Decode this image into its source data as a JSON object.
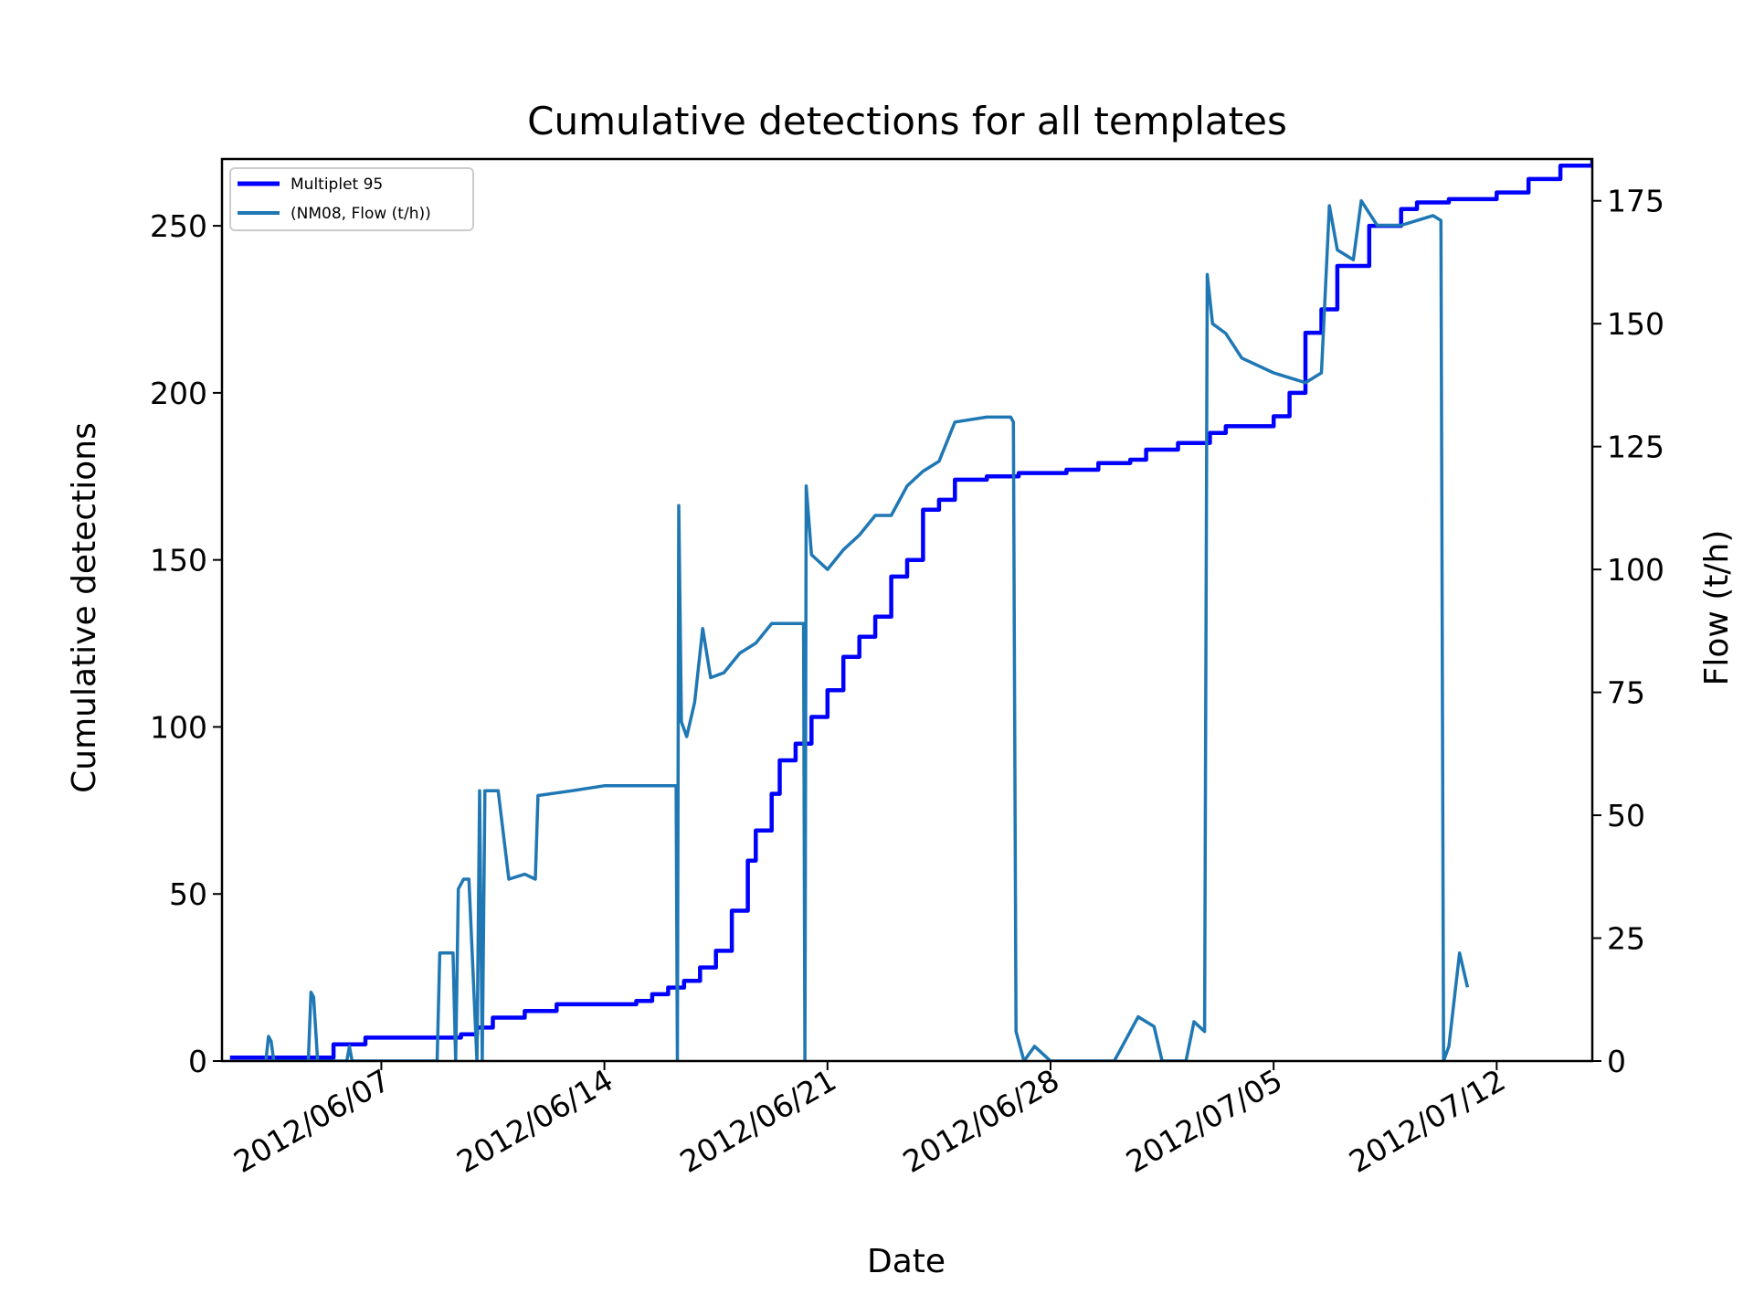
{
  "chart_data": {
    "type": "line",
    "title": "Cumulative detections for all templates",
    "xlabel": "Date",
    "ylabel": "Cumulative detections",
    "y2label": "Flow (t/h)",
    "x_tick_labels": [
      "2012/06/07",
      "2012/06/14",
      "2012/06/21",
      "2012/06/28",
      "2012/07/05",
      "2012/07/12"
    ],
    "x_tick_dates": [
      "2012-06-07",
      "2012-06-14",
      "2012-06-21",
      "2012-06-28",
      "2012-07-05",
      "2012-07-12"
    ],
    "xlim": [
      "2012-06-02T00:00",
      "2012-07-15T00:00"
    ],
    "ylim": [
      0,
      270
    ],
    "y_ticks": [
      0,
      50,
      100,
      150,
      200,
      250
    ],
    "y2lim": [
      0,
      183.5
    ],
    "y2_ticks": [
      0,
      25,
      50,
      75,
      100,
      125,
      150,
      175
    ],
    "legend_position": "upper left",
    "grid": false,
    "series": [
      {
        "name": "Multiplet 95",
        "axis": "left",
        "color": "#0000ff",
        "style": "step",
        "points": [
          [
            "2012-06-02T06:00",
            1
          ],
          [
            "2012-06-03T12:00",
            1
          ],
          [
            "2012-06-04T18:00",
            1
          ],
          [
            "2012-06-05T12:00",
            5
          ],
          [
            "2012-06-06T12:00",
            7
          ],
          [
            "2012-06-07T12:00",
            7
          ],
          [
            "2012-06-08T12:00",
            7
          ],
          [
            "2012-06-09T12:00",
            8
          ],
          [
            "2012-06-10T00:00",
            10
          ],
          [
            "2012-06-10T12:00",
            13
          ],
          [
            "2012-06-11T12:00",
            15
          ],
          [
            "2012-06-12T12:00",
            17
          ],
          [
            "2012-06-13T12:00",
            17
          ],
          [
            "2012-06-14T12:00",
            17
          ],
          [
            "2012-06-15T00:00",
            18
          ],
          [
            "2012-06-15T12:00",
            20
          ],
          [
            "2012-06-16T00:00",
            22
          ],
          [
            "2012-06-16T12:00",
            24
          ],
          [
            "2012-06-17T00:00",
            28
          ],
          [
            "2012-06-17T12:00",
            33
          ],
          [
            "2012-06-18T00:00",
            45
          ],
          [
            "2012-06-18T12:00",
            60
          ],
          [
            "2012-06-18T18:00",
            69
          ],
          [
            "2012-06-19T06:00",
            80
          ],
          [
            "2012-06-19T12:00",
            90
          ],
          [
            "2012-06-20T00:00",
            95
          ],
          [
            "2012-06-20T12:00",
            103
          ],
          [
            "2012-06-21T00:00",
            111
          ],
          [
            "2012-06-21T12:00",
            121
          ],
          [
            "2012-06-22T00:00",
            127
          ],
          [
            "2012-06-22T12:00",
            133
          ],
          [
            "2012-06-23T00:00",
            145
          ],
          [
            "2012-06-23T12:00",
            150
          ],
          [
            "2012-06-24T00:00",
            165
          ],
          [
            "2012-06-24T12:00",
            168
          ],
          [
            "2012-06-25T00:00",
            174
          ],
          [
            "2012-06-26T00:00",
            175
          ],
          [
            "2012-06-27T00:00",
            176
          ],
          [
            "2012-06-28T12:00",
            177
          ],
          [
            "2012-06-29T12:00",
            179
          ],
          [
            "2012-06-30T12:00",
            180
          ],
          [
            "2012-07-01T00:00",
            183
          ],
          [
            "2012-07-02T00:00",
            185
          ],
          [
            "2012-07-03T00:00",
            188
          ],
          [
            "2012-07-03T12:00",
            190
          ],
          [
            "2012-07-05T00:00",
            193
          ],
          [
            "2012-07-05T12:00",
            200
          ],
          [
            "2012-07-06T00:00",
            218
          ],
          [
            "2012-07-06T12:00",
            225
          ],
          [
            "2012-07-07T00:00",
            238
          ],
          [
            "2012-07-08T00:00",
            250
          ],
          [
            "2012-07-09T00:00",
            255
          ],
          [
            "2012-07-09T12:00",
            257
          ],
          [
            "2012-07-10T12:00",
            258
          ],
          [
            "2012-07-12T00:00",
            260
          ],
          [
            "2012-07-13T00:00",
            264
          ],
          [
            "2012-07-14T00:00",
            268
          ],
          [
            "2012-07-15T00:00",
            270
          ]
        ]
      },
      {
        "name": "(NM08, Flow (t/h))",
        "axis": "right",
        "color": "#1f77b4",
        "style": "line",
        "points": [
          [
            "2012-06-03T09:00",
            0
          ],
          [
            "2012-06-03T11:00",
            5
          ],
          [
            "2012-06-03T13:00",
            4
          ],
          [
            "2012-06-03T15:00",
            0
          ],
          [
            "2012-06-04T17:00",
            0
          ],
          [
            "2012-06-04T19:00",
            14
          ],
          [
            "2012-06-04T21:00",
            13
          ],
          [
            "2012-06-05T00:00",
            0
          ],
          [
            "2012-06-05T22:00",
            0
          ],
          [
            "2012-06-06T00:00",
            3
          ],
          [
            "2012-06-06T02:00",
            0
          ],
          [
            "2012-06-08T18:00",
            0
          ],
          [
            "2012-06-08T20:00",
            22
          ],
          [
            "2012-06-09T06:00",
            22
          ],
          [
            "2012-06-09T08:00",
            0
          ],
          [
            "2012-06-09T10:00",
            35
          ],
          [
            "2012-06-09T14:00",
            37
          ],
          [
            "2012-06-09T18:00",
            37
          ],
          [
            "2012-06-10T00:00",
            0
          ],
          [
            "2012-06-10T02:00",
            55
          ],
          [
            "2012-06-10T04:00",
            0
          ],
          [
            "2012-06-10T06:00",
            55
          ],
          [
            "2012-06-10T16:00",
            55
          ],
          [
            "2012-06-11T00:00",
            37
          ],
          [
            "2012-06-11T12:00",
            38
          ],
          [
            "2012-06-11T20:00",
            37
          ],
          [
            "2012-06-11T22:00",
            54
          ],
          [
            "2012-06-13T00:00",
            55
          ],
          [
            "2012-06-14T00:00",
            56
          ],
          [
            "2012-06-15T00:00",
            56
          ],
          [
            "2012-06-16T06:00",
            56
          ],
          [
            "2012-06-16T07:00",
            0
          ],
          [
            "2012-06-16T08:00",
            113
          ],
          [
            "2012-06-16T10:00",
            69
          ],
          [
            "2012-06-16T14:00",
            66
          ],
          [
            "2012-06-16T20:00",
            73
          ],
          [
            "2012-06-17T02:00",
            88
          ],
          [
            "2012-06-17T08:00",
            78
          ],
          [
            "2012-06-17T18:00",
            79
          ],
          [
            "2012-06-18T06:00",
            83
          ],
          [
            "2012-06-18T18:00",
            85
          ],
          [
            "2012-06-19T06:00",
            89
          ],
          [
            "2012-06-20T06:00",
            89
          ],
          [
            "2012-06-20T07:00",
            0
          ],
          [
            "2012-06-20T08:00",
            117
          ],
          [
            "2012-06-20T12:00",
            103
          ],
          [
            "2012-06-21T00:00",
            100
          ],
          [
            "2012-06-21T12:00",
            104
          ],
          [
            "2012-06-22T00:00",
            107
          ],
          [
            "2012-06-22T12:00",
            111
          ],
          [
            "2012-06-23T00:00",
            111
          ],
          [
            "2012-06-23T12:00",
            117
          ],
          [
            "2012-06-24T00:00",
            120
          ],
          [
            "2012-06-24T12:00",
            122
          ],
          [
            "2012-06-25T00:00",
            130
          ],
          [
            "2012-06-26T00:00",
            131
          ],
          [
            "2012-06-26T18:00",
            131
          ],
          [
            "2012-06-26T20:00",
            130
          ],
          [
            "2012-06-26T22:00",
            6
          ],
          [
            "2012-06-27T04:00",
            0
          ],
          [
            "2012-06-27T12:00",
            3
          ],
          [
            "2012-06-28T00:00",
            0
          ],
          [
            "2012-06-29T00:00",
            0
          ],
          [
            "2012-06-30T00:00",
            0
          ],
          [
            "2012-06-30T18:00",
            9
          ],
          [
            "2012-07-01T06:00",
            7
          ],
          [
            "2012-07-01T12:00",
            0
          ],
          [
            "2012-07-02T06:00",
            0
          ],
          [
            "2012-07-02T12:00",
            8
          ],
          [
            "2012-07-02T20:00",
            6
          ],
          [
            "2012-07-02T22:00",
            160
          ],
          [
            "2012-07-03T02:00",
            150
          ],
          [
            "2012-07-03T12:00",
            148
          ],
          [
            "2012-07-04T00:00",
            143
          ],
          [
            "2012-07-05T00:00",
            140
          ],
          [
            "2012-07-06T00:00",
            138
          ],
          [
            "2012-07-06T12:00",
            140
          ],
          [
            "2012-07-06T18:00",
            174
          ],
          [
            "2012-07-07T00:00",
            165
          ],
          [
            "2012-07-07T12:00",
            163
          ],
          [
            "2012-07-07T18:00",
            175
          ],
          [
            "2012-07-08T06:00",
            170
          ],
          [
            "2012-07-09T00:00",
            170
          ],
          [
            "2012-07-10T00:00",
            172
          ],
          [
            "2012-07-10T06:00",
            171
          ],
          [
            "2012-07-10T08:00",
            0
          ],
          [
            "2012-07-10T12:00",
            3
          ],
          [
            "2012-07-10T20:00",
            22
          ],
          [
            "2012-07-11T02:00",
            15
          ]
        ]
      }
    ]
  }
}
